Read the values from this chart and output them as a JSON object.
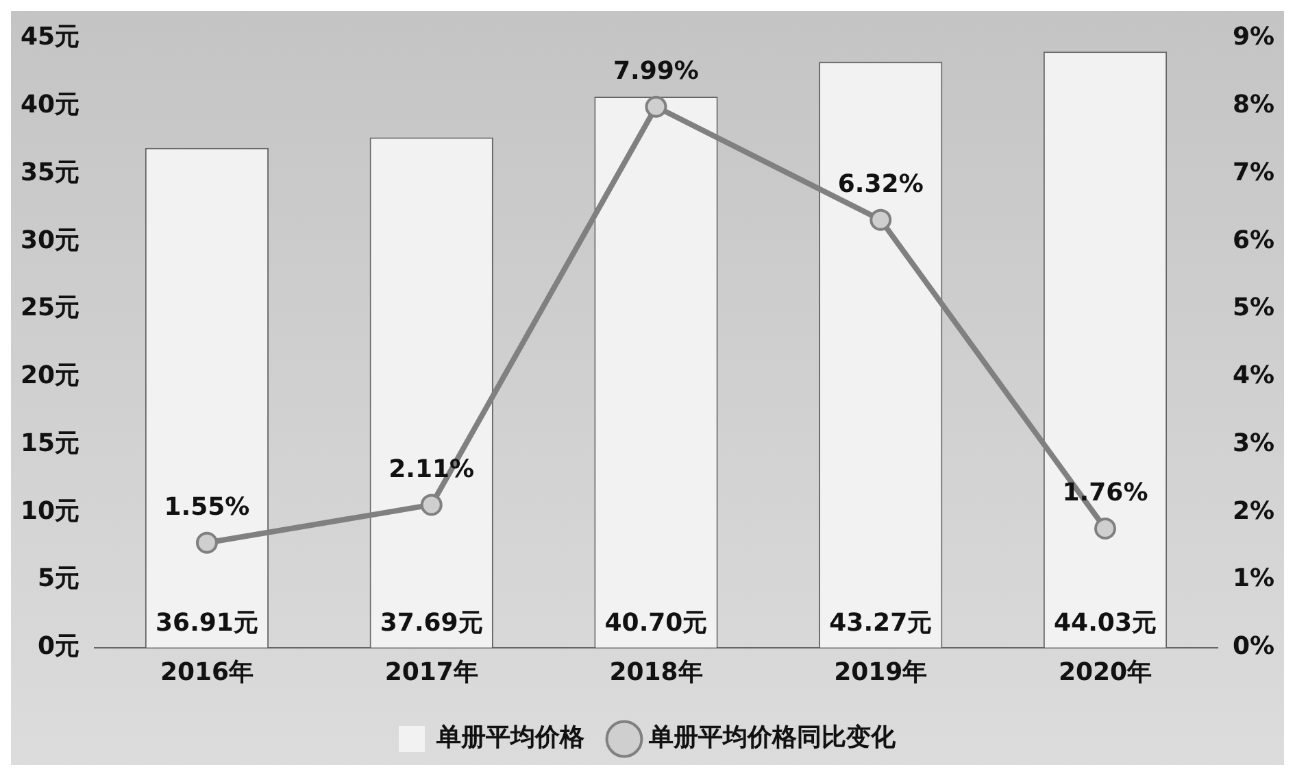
{
  "chart_data": {
    "type": "bar",
    "categories": [
      "2016年",
      "2017年",
      "2018年",
      "2019年",
      "2020年"
    ],
    "series": [
      {
        "name": "单册平均价格",
        "color": "#f2f2f2",
        "values": [
          36.91,
          37.69,
          40.7,
          43.27,
          44.03
        ],
        "value_labels": [
          "36.91元",
          "37.69元",
          "40.70元",
          "43.27元",
          "44.03元"
        ]
      },
      {
        "name": "单册平均价格同比变化",
        "type": "line",
        "axis": "y2",
        "color": "#808080",
        "values": [
          1.55,
          2.11,
          7.99,
          6.32,
          1.76
        ],
        "value_labels": [
          "1.55%",
          "2.11%",
          "7.99%",
          "6.32%",
          "1.76%"
        ]
      }
    ],
    "ylim": [
      0,
      45
    ],
    "yticks": [
      {
        "value": 0,
        "label": "0元"
      },
      {
        "value": 5,
        "label": "5元"
      },
      {
        "value": 10,
        "label": "10元"
      },
      {
        "value": 15,
        "label": "15元"
      },
      {
        "value": 20,
        "label": "20元"
      },
      {
        "value": 25,
        "label": "25元"
      },
      {
        "value": 30,
        "label": "30元"
      },
      {
        "value": 35,
        "label": "35元"
      },
      {
        "value": 40,
        "label": "40元"
      },
      {
        "value": 45,
        "label": "45元"
      }
    ],
    "y2lim": [
      0,
      9
    ],
    "y2ticks": [
      {
        "value": 0,
        "label": "0%"
      },
      {
        "value": 1,
        "label": "1%"
      },
      {
        "value": 2,
        "label": "2%"
      },
      {
        "value": 3,
        "label": "3%"
      },
      {
        "value": 4,
        "label": "4%"
      },
      {
        "value": 5,
        "label": "5%"
      },
      {
        "value": 6,
        "label": "6%"
      },
      {
        "value": 7,
        "label": "7%"
      },
      {
        "value": 8,
        "label": "8%"
      },
      {
        "value": 9,
        "label": "9%"
      }
    ],
    "legend": "bottom",
    "marker": "circle"
  }
}
